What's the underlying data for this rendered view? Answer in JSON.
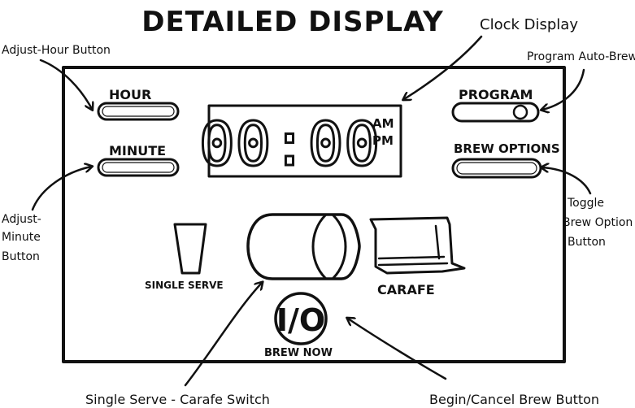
{
  "title": "DETAILED DISPLAY",
  "panel": {
    "hour_label": "HOUR",
    "minute_label": "MINUTE",
    "program_label": "PROGRAM",
    "brew_options_label": "BREW OPTIONS",
    "clock_time": "00:00",
    "am_label": "AM",
    "pm_label": "PM",
    "single_serve_label": "SINGLE SERVE",
    "carafe_label": "CARAFE",
    "power_symbol": "I/O",
    "brew_now_label": "BREW NOW"
  },
  "annotations": {
    "clock_display": "Clock Display",
    "adjust_hour": "Adjust-Hour Button",
    "program_auto_brew": "Program Auto-Brew",
    "adjust_minute_line1": "Adjust-",
    "adjust_minute_line2": "Minute",
    "adjust_minute_line3": "Button",
    "toggle_line1": "Toggle",
    "toggle_line2": "Brew Option",
    "toggle_line3": "Button",
    "single_serve_carafe_switch": "Single Serve - Carafe Switch",
    "begin_cancel_brew": "Begin/Cancel Brew Button"
  }
}
